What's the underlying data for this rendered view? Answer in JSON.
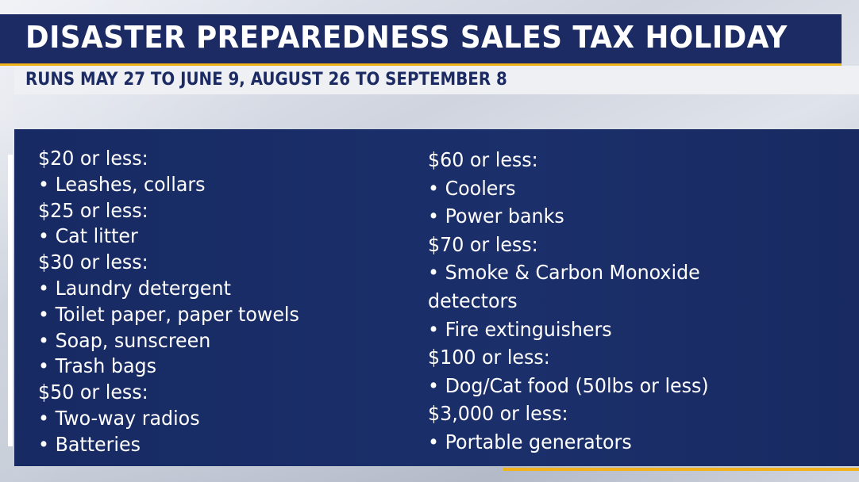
{
  "header": {
    "title": "DISASTER PREPAREDNESS SALES TAX HOLIDAY",
    "subtitle": "RUNS MAY 27 TO JUNE 9, AUGUST 26 TO SEPTEMBER 8"
  },
  "colors": {
    "navy": "#1c2b64",
    "accent": "#f2b21d",
    "text": "#ffffff"
  },
  "left_column": [
    {
      "type": "head",
      "text": "$20 or less:"
    },
    {
      "type": "item",
      "text": "Leashes, collars"
    },
    {
      "type": "head",
      "text": "$25 or less:"
    },
    {
      "type": "item",
      "text": "Cat litter"
    },
    {
      "type": "head",
      "text": "$30 or less:"
    },
    {
      "type": "item",
      "text": "Laundry detergent"
    },
    {
      "type": "item",
      "text": "Toilet paper, paper towels"
    },
    {
      "type": "item",
      "text": "Soap, sunscreen"
    },
    {
      "type": "item",
      "text": "Trash bags"
    },
    {
      "type": "head",
      "text": "$50 or less:"
    },
    {
      "type": "item",
      "text": "Two-way radios"
    },
    {
      "type": "item",
      "text": "Batteries"
    }
  ],
  "right_column": [
    {
      "type": "head",
      "text": "$60 or less:"
    },
    {
      "type": "item",
      "text": "Coolers"
    },
    {
      "type": "item",
      "text": "Power banks"
    },
    {
      "type": "head",
      "text": "$70 or less:"
    },
    {
      "type": "item",
      "text": "Smoke & Carbon Monoxide"
    },
    {
      "type": "cont",
      "text": "detectors"
    },
    {
      "type": "item",
      "text": "Fire extinguishers"
    },
    {
      "type": "head",
      "text": "$100 or less:"
    },
    {
      "type": "item",
      "text": "Dog/Cat food (50lbs or less)"
    },
    {
      "type": "head",
      "text": "$3,000 or less:"
    },
    {
      "type": "item",
      "text": "Portable generators"
    }
  ]
}
